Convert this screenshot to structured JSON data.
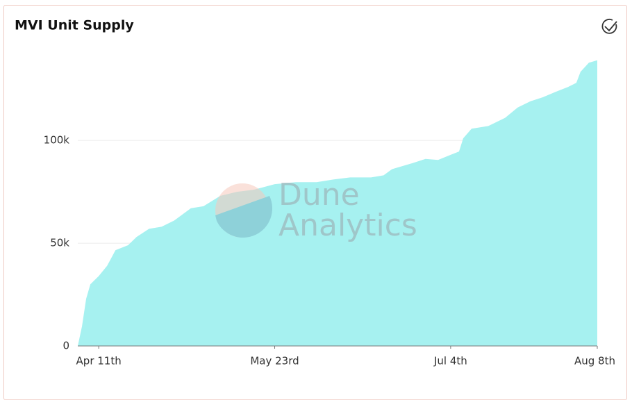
{
  "chart_data": {
    "type": "area",
    "title": "MVI Unit Supply",
    "watermark": [
      "Dune",
      "Analytics"
    ],
    "color": "#a6f1f0",
    "x": [
      "Apr 6",
      "Apr 7",
      "Apr 8",
      "Apr 9",
      "Apr 11",
      "Apr 13",
      "Apr 15",
      "Apr 18",
      "Apr 20",
      "Apr 23",
      "Apr 26",
      "Apr 29",
      "May 3",
      "May 6",
      "May 10",
      "May 14",
      "May 18",
      "May 23",
      "May 28",
      "Jun 2",
      "Jun 6",
      "Jun 10",
      "Jun 15",
      "Jun 18",
      "Jun 20",
      "Jun 25",
      "Jun 28",
      "Jul 1",
      "Jul 4",
      "Jul 6",
      "Jul 7",
      "Jul 9",
      "Jul 13",
      "Jul 17",
      "Jul 20",
      "Jul 23",
      "Jul 26",
      "Jul 29",
      "Aug 1",
      "Aug 3",
      "Aug 4",
      "Aug 6",
      "Aug 8"
    ],
    "values": [
      0,
      9500,
      23000,
      30000,
      34000,
      39000,
      46600,
      49000,
      53000,
      57000,
      58000,
      61000,
      67000,
      68000,
      73000,
      75000,
      76000,
      78700,
      79700,
      79700,
      81000,
      82000,
      82000,
      83000,
      86000,
      89000,
      91000,
      90500,
      93000,
      94600,
      101000,
      105700,
      107000,
      111000,
      116000,
      119000,
      121000,
      123600,
      126000,
      128000,
      133400,
      137800,
      139000
    ],
    "xlim": [
      "Apr 6",
      "Aug 8"
    ],
    "xticks": [
      {
        "value": "Apr 11",
        "label": "Apr 11th"
      },
      {
        "value": "May 23",
        "label": "May 23rd"
      },
      {
        "value": "Jul 4",
        "label": "Jul 4th"
      },
      {
        "value": "Aug 8",
        "label": "Aug 8th"
      }
    ],
    "ylim": [
      0,
      145000
    ],
    "yticks": [
      {
        "value": 0,
        "label": "0"
      },
      {
        "value": 50000,
        "label": "50k"
      },
      {
        "value": 100000,
        "label": "100k"
      }
    ],
    "grid": true
  }
}
